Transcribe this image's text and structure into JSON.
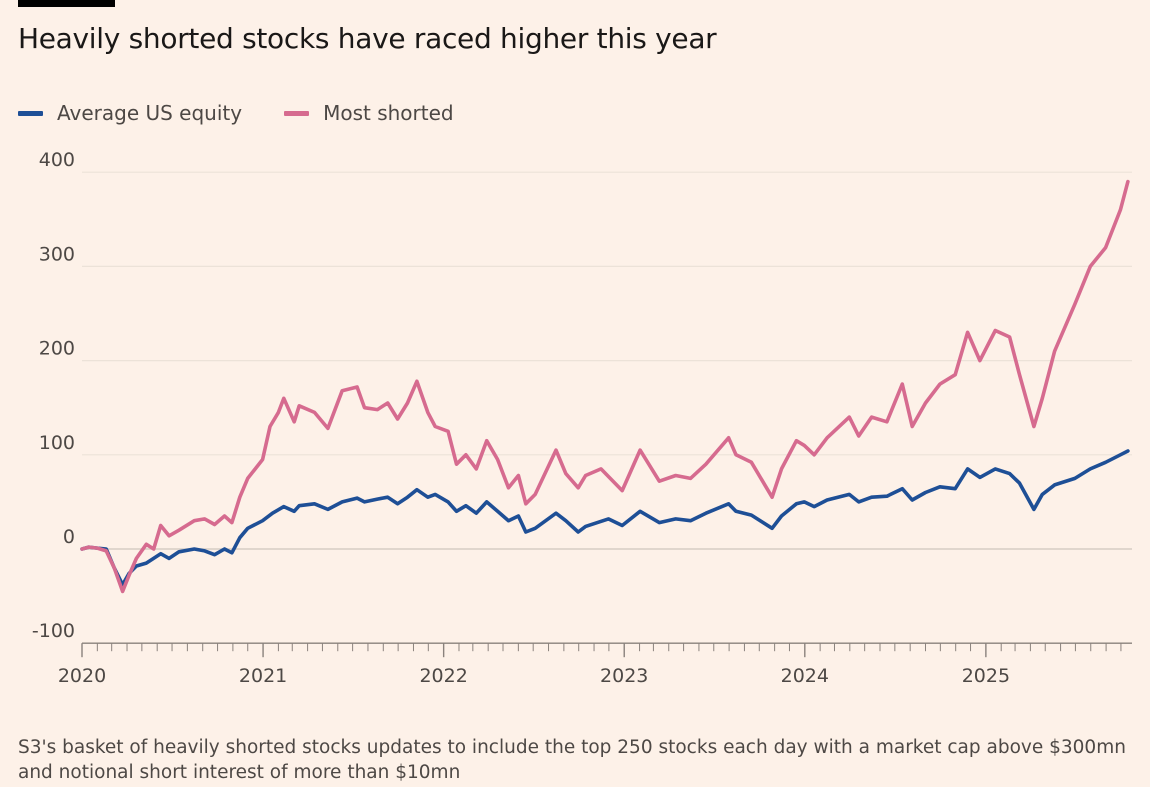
{
  "title": "Heavily shorted stocks have raced higher this year",
  "footnote": "S3's basket of heavily shorted stocks updates to include the top 250 stocks each day with a market cap above $300mn and notional short interest of more than $10mn",
  "colors": {
    "background": "#fdf1e8",
    "average": "#1e4f96",
    "shorted": "#d66b8f",
    "grid": "#ece2d8",
    "zero": "#d6cdc4",
    "text": "#4d4845"
  },
  "chart_data": {
    "type": "line",
    "title": "Heavily shorted stocks have raced higher this year",
    "xlabel": "",
    "ylabel": "",
    "x_axis": "date",
    "xlim": [
      "2020-01-01",
      "2025-10-15"
    ],
    "ylim": [
      -100,
      400
    ],
    "yticks": [
      400,
      300,
      200,
      100,
      0,
      -100
    ],
    "xticks": [
      "2020",
      "2021",
      "2022",
      "2023",
      "2024",
      "2025"
    ],
    "grid": true,
    "legend_position": "top-left",
    "series": [
      {
        "name": "Average US equity",
        "color": "#1e4f96",
        "points": [
          [
            "2020-01-01",
            0
          ],
          [
            "2020-01-15",
            2
          ],
          [
            "2020-02-01",
            1
          ],
          [
            "2020-02-19",
            0
          ],
          [
            "2020-03-06",
            -20
          ],
          [
            "2020-03-23",
            -38
          ],
          [
            "2020-04-05",
            -26
          ],
          [
            "2020-04-20",
            -18
          ],
          [
            "2020-05-10",
            -15
          ],
          [
            "2020-06-08",
            -5
          ],
          [
            "2020-06-25",
            -10
          ],
          [
            "2020-07-15",
            -3
          ],
          [
            "2020-08-15",
            0
          ],
          [
            "2020-09-05",
            -2
          ],
          [
            "2020-09-25",
            -6
          ],
          [
            "2020-10-15",
            0
          ],
          [
            "2020-10-30",
            -4
          ],
          [
            "2020-11-15",
            12
          ],
          [
            "2020-12-01",
            22
          ],
          [
            "2020-12-31",
            30
          ],
          [
            "2021-01-20",
            38
          ],
          [
            "2021-02-12",
            45
          ],
          [
            "2021-03-05",
            40
          ],
          [
            "2021-03-15",
            46
          ],
          [
            "2021-04-15",
            48
          ],
          [
            "2021-05-12",
            42
          ],
          [
            "2021-06-10",
            50
          ],
          [
            "2021-07-10",
            54
          ],
          [
            "2021-07-25",
            50
          ],
          [
            "2021-08-20",
            53
          ],
          [
            "2021-09-10",
            55
          ],
          [
            "2021-09-30",
            48
          ],
          [
            "2021-10-20",
            55
          ],
          [
            "2021-11-08",
            63
          ],
          [
            "2021-11-30",
            55
          ],
          [
            "2021-12-15",
            58
          ],
          [
            "2022-01-10",
            50
          ],
          [
            "2022-01-27",
            40
          ],
          [
            "2022-02-15",
            46
          ],
          [
            "2022-03-08",
            38
          ],
          [
            "2022-03-29",
            50
          ],
          [
            "2022-04-20",
            40
          ],
          [
            "2022-05-12",
            30
          ],
          [
            "2022-06-01",
            35
          ],
          [
            "2022-06-16",
            18
          ],
          [
            "2022-07-05",
            22
          ],
          [
            "2022-08-16",
            38
          ],
          [
            "2022-09-05",
            30
          ],
          [
            "2022-09-30",
            18
          ],
          [
            "2022-10-15",
            24
          ],
          [
            "2022-11-30",
            32
          ],
          [
            "2022-12-28",
            25
          ],
          [
            "2023-02-02",
            40
          ],
          [
            "2023-03-13",
            28
          ],
          [
            "2023-04-15",
            32
          ],
          [
            "2023-05-15",
            30
          ],
          [
            "2023-06-15",
            38
          ],
          [
            "2023-07-31",
            48
          ],
          [
            "2023-08-15",
            40
          ],
          [
            "2023-09-15",
            36
          ],
          [
            "2023-10-27",
            22
          ],
          [
            "2023-11-15",
            35
          ],
          [
            "2023-12-15",
            48
          ],
          [
            "2023-12-31",
            50
          ],
          [
            "2024-01-20",
            45
          ],
          [
            "2024-02-15",
            52
          ],
          [
            "2024-03-31",
            58
          ],
          [
            "2024-04-19",
            50
          ],
          [
            "2024-05-15",
            55
          ],
          [
            "2024-06-15",
            56
          ],
          [
            "2024-07-16",
            64
          ],
          [
            "2024-08-05",
            52
          ],
          [
            "2024-09-01",
            60
          ],
          [
            "2024-09-30",
            66
          ],
          [
            "2024-10-31",
            64
          ],
          [
            "2024-11-25",
            85
          ],
          [
            "2024-12-20",
            76
          ],
          [
            "2025-01-20",
            85
          ],
          [
            "2025-02-18",
            80
          ],
          [
            "2025-03-10",
            70
          ],
          [
            "2025-04-08",
            42
          ],
          [
            "2025-04-25",
            58
          ],
          [
            "2025-05-20",
            68
          ],
          [
            "2025-06-30",
            75
          ],
          [
            "2025-07-31",
            85
          ],
          [
            "2025-08-31",
            92
          ],
          [
            "2025-09-30",
            100
          ],
          [
            "2025-10-15",
            104
          ]
        ]
      },
      {
        "name": "Most shorted",
        "color": "#d66b8f",
        "points": [
          [
            "2020-01-01",
            0
          ],
          [
            "2020-01-15",
            2
          ],
          [
            "2020-02-01",
            1
          ],
          [
            "2020-02-19",
            -2
          ],
          [
            "2020-03-06",
            -20
          ],
          [
            "2020-03-23",
            -45
          ],
          [
            "2020-04-05",
            -28
          ],
          [
            "2020-04-20",
            -10
          ],
          [
            "2020-05-10",
            5
          ],
          [
            "2020-05-25",
            0
          ],
          [
            "2020-06-08",
            25
          ],
          [
            "2020-06-25",
            14
          ],
          [
            "2020-07-15",
            20
          ],
          [
            "2020-08-15",
            30
          ],
          [
            "2020-09-05",
            32
          ],
          [
            "2020-09-25",
            26
          ],
          [
            "2020-10-15",
            35
          ],
          [
            "2020-10-30",
            28
          ],
          [
            "2020-11-15",
            55
          ],
          [
            "2020-12-01",
            75
          ],
          [
            "2020-12-31",
            95
          ],
          [
            "2021-01-15",
            130
          ],
          [
            "2021-02-01",
            145
          ],
          [
            "2021-02-12",
            160
          ],
          [
            "2021-03-05",
            135
          ],
          [
            "2021-03-15",
            152
          ],
          [
            "2021-04-15",
            145
          ],
          [
            "2021-05-12",
            128
          ],
          [
            "2021-06-10",
            168
          ],
          [
            "2021-07-10",
            172
          ],
          [
            "2021-07-25",
            150
          ],
          [
            "2021-08-20",
            148
          ],
          [
            "2021-09-10",
            155
          ],
          [
            "2021-09-30",
            138
          ],
          [
            "2021-10-20",
            155
          ],
          [
            "2021-11-08",
            178
          ],
          [
            "2021-11-30",
            145
          ],
          [
            "2021-12-15",
            130
          ],
          [
            "2022-01-10",
            125
          ],
          [
            "2022-01-27",
            90
          ],
          [
            "2022-02-15",
            100
          ],
          [
            "2022-03-08",
            85
          ],
          [
            "2022-03-29",
            115
          ],
          [
            "2022-04-20",
            95
          ],
          [
            "2022-05-12",
            65
          ],
          [
            "2022-06-01",
            78
          ],
          [
            "2022-06-16",
            48
          ],
          [
            "2022-07-05",
            58
          ],
          [
            "2022-08-16",
            105
          ],
          [
            "2022-09-05",
            80
          ],
          [
            "2022-09-30",
            65
          ],
          [
            "2022-10-15",
            78
          ],
          [
            "2022-11-15",
            85
          ],
          [
            "2022-12-28",
            62
          ],
          [
            "2023-02-02",
            105
          ],
          [
            "2023-03-13",
            72
          ],
          [
            "2023-04-15",
            78
          ],
          [
            "2023-05-15",
            75
          ],
          [
            "2023-06-15",
            90
          ],
          [
            "2023-07-31",
            118
          ],
          [
            "2023-08-15",
            100
          ],
          [
            "2023-09-15",
            92
          ],
          [
            "2023-10-27",
            55
          ],
          [
            "2023-11-15",
            85
          ],
          [
            "2023-12-15",
            115
          ],
          [
            "2023-12-31",
            110
          ],
          [
            "2024-01-20",
            100
          ],
          [
            "2024-02-15",
            118
          ],
          [
            "2024-03-31",
            140
          ],
          [
            "2024-04-19",
            120
          ],
          [
            "2024-05-15",
            140
          ],
          [
            "2024-06-15",
            135
          ],
          [
            "2024-07-16",
            175
          ],
          [
            "2024-08-05",
            130
          ],
          [
            "2024-09-01",
            155
          ],
          [
            "2024-09-30",
            175
          ],
          [
            "2024-10-31",
            185
          ],
          [
            "2024-11-25",
            230
          ],
          [
            "2024-12-20",
            200
          ],
          [
            "2025-01-20",
            232
          ],
          [
            "2025-02-18",
            225
          ],
          [
            "2025-03-10",
            185
          ],
          [
            "2025-04-08",
            130
          ],
          [
            "2025-04-25",
            160
          ],
          [
            "2025-05-20",
            210
          ],
          [
            "2025-06-30",
            260
          ],
          [
            "2025-07-31",
            300
          ],
          [
            "2025-08-31",
            320
          ],
          [
            "2025-09-30",
            360
          ],
          [
            "2025-10-15",
            390
          ]
        ]
      }
    ]
  }
}
